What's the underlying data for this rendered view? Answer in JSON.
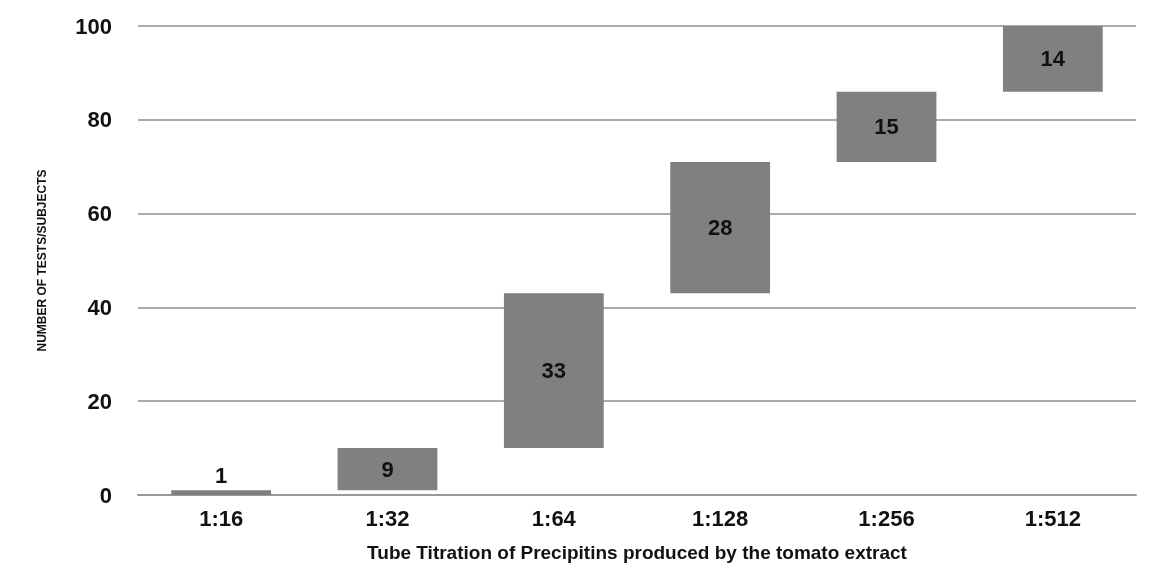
{
  "chart_data": {
    "type": "bar",
    "xlabel": "Tube Titration of Precipitins produced by the tomato extract",
    "ylabel": "NUMBER OF TESTS/SUBJECTS",
    "categories": [
      "1:16",
      "1:32",
      "1:64",
      "1:128",
      "1:256",
      "1:512"
    ],
    "values": [
      1,
      9,
      33,
      28,
      15,
      14
    ],
    "base": [
      0,
      1,
      10,
      43,
      71,
      86
    ],
    "color": "#808080",
    "ylim": [
      0,
      100
    ],
    "yticks": [
      0,
      20,
      40,
      60,
      80,
      100
    ],
    "grid": "y",
    "data_labels": true
  }
}
